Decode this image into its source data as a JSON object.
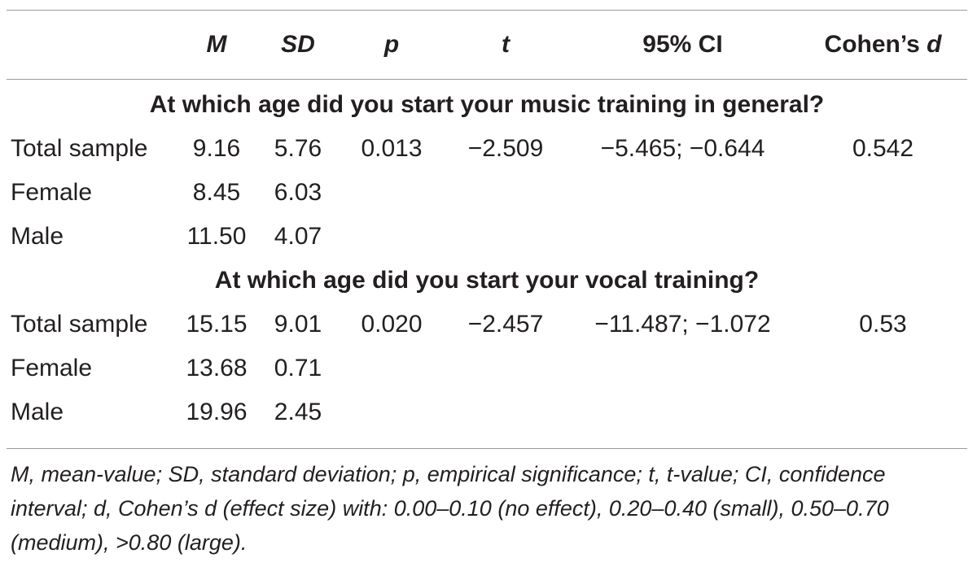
{
  "header": {
    "col_m": "M",
    "col_sd": "SD",
    "col_p": "p",
    "col_t": "t",
    "col_ci": "95% CI",
    "col_d_prefix": "Cohen’s ",
    "col_d_var": "d"
  },
  "sections": [
    {
      "title": "At which age did you start your music training in general?",
      "rows": [
        {
          "label": "Total sample",
          "m": "9.16",
          "sd": "5.76",
          "p": "0.013",
          "t": "−2.509",
          "ci": "−5.465; −0.644",
          "d": "0.542"
        },
        {
          "label": "Female",
          "m": "8.45",
          "sd": "6.03",
          "p": "",
          "t": "",
          "ci": "",
          "d": ""
        },
        {
          "label": "Male",
          "m": "11.50",
          "sd": "4.07",
          "p": "",
          "t": "",
          "ci": "",
          "d": ""
        }
      ]
    },
    {
      "title": "At which age did you start your vocal training?",
      "rows": [
        {
          "label": "Total sample",
          "m": "15.15",
          "sd": "9.01",
          "p": "0.020",
          "t": "−2.457",
          "ci": "−11.487; −1.072",
          "d": "0.53"
        },
        {
          "label": "Female",
          "m": "13.68",
          "sd": "0.71",
          "p": "",
          "t": "",
          "ci": "",
          "d": ""
        },
        {
          "label": "Male",
          "m": "19.96",
          "sd": "2.45",
          "p": "",
          "t": "",
          "ci": "",
          "d": ""
        }
      ]
    }
  ],
  "footnote": "M, mean-value; SD, standard deviation; p, empirical significance; t, t-value; CI, confidence interval; d, Cohen’s d (effect size) with: 0.00–0.10 (no effect), 0.20–0.40 (small), 0.50–0.70 (medium), >0.80 (large)."
}
